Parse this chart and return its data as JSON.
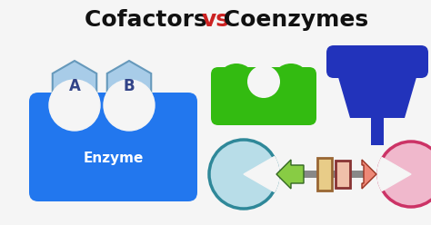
{
  "title_left": "Cofactors ",
  "title_vs": "vs",
  "title_right": " Coenzymes",
  "title_fontsize": 18,
  "bg_color": "#f5f5f5",
  "hex_color": "#a8cce8",
  "hex_edge_color": "#6699bb",
  "enzyme_color": "#2277ee",
  "enzyme_text": "Enzyme",
  "enzyme_text_color": "#ffffff",
  "label_A": "A",
  "label_B": "B",
  "hex_label_color": "#334488",
  "green_shape_color": "#33bb11",
  "blue_goblet_color": "#2233bb",
  "pacman_color": "#b8dde8",
  "pacman_edge_color": "#2f8899",
  "arrow_left_color": "#88cc44",
  "arrow_left_edge": "#336622",
  "arrow_right_color": "#ee8877",
  "arrow_right_edge": "#993322",
  "connector_color": "#888888",
  "rect1_fill": "#e8cc88",
  "rect1_edge": "#996633",
  "rect2_fill": "#f0c0aa",
  "rect2_edge": "#883333",
  "pink_circle_color": "#f0b8cc",
  "pink_circle_edge": "#cc3366",
  "vs_color": "#cc2222"
}
